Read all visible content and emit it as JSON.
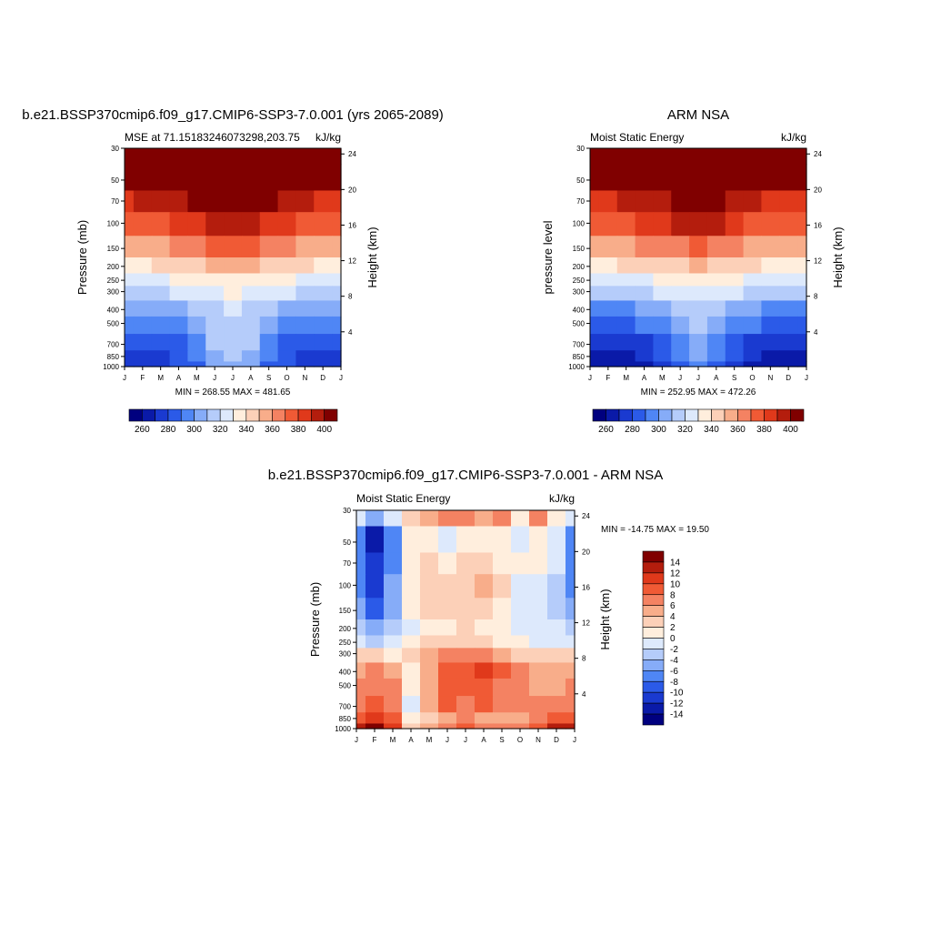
{
  "palette": {
    "model_obs": [
      "#00007f",
      "#0a1aa8",
      "#1a3ad0",
      "#2b5ae8",
      "#4f86f5",
      "#86acf8",
      "#b5ccfa",
      "#dde9fc",
      "#ffeedd",
      "#fcd0b8",
      "#f8ad8a",
      "#f48262",
      "#f05a35",
      "#e0391b",
      "#b41d0d",
      "#800000"
    ],
    "diff": [
      "#00007f",
      "#0a1aa8",
      "#1a3ad0",
      "#2b5ae8",
      "#4f86f5",
      "#86acf8",
      "#b5ccfa",
      "#dde9fc",
      "#ffeedd",
      "#fcd0b8",
      "#f8ad8a",
      "#f48262",
      "#f05a35",
      "#e0391b",
      "#b41d0d",
      "#800000"
    ]
  },
  "chart_data": [
    {
      "type": "heatmap",
      "title": "b.e21.BSSP370cmip6.f09_g17.CMIP6-SSP3-7.0.001 (yrs 2065-2089)",
      "subtitle_left": "MSE at 71.15183246073298,203.75",
      "subtitle_right": "kJ/kg",
      "ylabel": "Pressure (mb)",
      "ylabel_right": "Height (km)",
      "xticks": [
        "J",
        "F",
        "M",
        "A",
        "M",
        "J",
        "J",
        "A",
        "S",
        "O",
        "N",
        "D",
        "J"
      ],
      "yticks": [
        "30",
        "50",
        "70",
        "100",
        "150",
        "200",
        "250",
        "300",
        "400",
        "500",
        "700",
        "850",
        "1000"
      ],
      "height_ticks": [
        "24",
        "20",
        "16",
        "12",
        "8",
        "4"
      ],
      "stats": "MIN = 268.55 MAX = 481.65",
      "colorbar_labels": [
        "260",
        "280",
        "300",
        "320",
        "340",
        "360",
        "380",
        "400"
      ],
      "months": [
        "J",
        "F",
        "M",
        "A",
        "M",
        "J",
        "J",
        "A",
        "S",
        "O",
        "N",
        "D",
        "J"
      ],
      "levels_mb": [
        30,
        50,
        70,
        100,
        150,
        200,
        250,
        300,
        400,
        500,
        700,
        850,
        1000
      ],
      "values": [
        [
          450,
          455,
          458,
          462,
          466,
          470,
          472,
          470,
          466,
          461,
          456,
          452,
          450
        ],
        [
          405,
          408,
          411,
          415,
          420,
          425,
          428,
          425,
          420,
          414,
          409,
          406,
          405
        ],
        [
          388,
          390,
          392,
          396,
          401,
          406,
          409,
          406,
          401,
          395,
          391,
          389,
          388
        ],
        [
          373,
          375,
          377,
          381,
          386,
          391,
          394,
          391,
          386,
          380,
          376,
          374,
          373
        ],
        [
          355,
          356,
          358,
          362,
          366,
          371,
          374,
          371,
          366,
          361,
          357,
          355,
          355
        ],
        [
          338,
          339,
          341,
          343,
          347,
          351,
          354,
          351,
          347,
          343,
          340,
          338,
          338
        ],
        [
          326,
          327,
          328,
          330,
          333,
          337,
          339,
          337,
          333,
          330,
          327,
          326,
          326
        ],
        [
          316,
          317,
          318,
          320,
          323,
          327,
          330,
          327,
          323,
          320,
          317,
          316,
          316
        ],
        [
          301,
          302,
          303,
          306,
          311,
          318,
          322,
          318,
          311,
          306,
          303,
          301,
          301
        ],
        [
          292,
          293,
          294,
          297,
          303,
          313,
          318,
          313,
          303,
          297,
          294,
          292,
          292
        ],
        [
          281,
          282,
          284,
          288,
          296,
          310,
          316,
          310,
          296,
          288,
          284,
          282,
          281
        ],
        [
          276,
          277,
          279,
          284,
          292,
          305,
          312,
          305,
          292,
          284,
          279,
          277,
          276
        ],
        [
          272,
          273,
          275,
          280,
          288,
          300,
          307,
          300,
          288,
          280,
          275,
          273,
          272
        ]
      ],
      "levels": [
        250,
        260,
        270,
        280,
        290,
        300,
        310,
        320,
        330,
        340,
        350,
        360,
        370,
        380,
        390,
        400
      ]
    },
    {
      "type": "heatmap",
      "title": "ARM NSA",
      "subtitle_left": "Moist Static Energy",
      "subtitle_right": "kJ/kg",
      "ylabel": "pressure level",
      "ylabel_right": "Height (km)",
      "xticks": [
        "J",
        "F",
        "M",
        "A",
        "M",
        "J",
        "J",
        "A",
        "S",
        "O",
        "N",
        "D",
        "J"
      ],
      "yticks": [
        "30",
        "50",
        "70",
        "100",
        "150",
        "200",
        "250",
        "300",
        "400",
        "500",
        "700",
        "850",
        "1000"
      ],
      "height_ticks": [
        "24",
        "20",
        "16",
        "12",
        "8",
        "4"
      ],
      "stats": "MIN = 252.95 MAX = 472.26",
      "colorbar_labels": [
        "260",
        "280",
        "300",
        "320",
        "340",
        "360",
        "380",
        "400"
      ],
      "months": [
        "J",
        "F",
        "M",
        "A",
        "M",
        "J",
        "J",
        "A",
        "S",
        "O",
        "N",
        "D",
        "J"
      ],
      "levels_mb": [
        30,
        50,
        70,
        100,
        150,
        200,
        250,
        300,
        400,
        500,
        700,
        850,
        1000
      ],
      "values": [
        [
          445,
          449,
          452,
          456,
          460,
          464,
          466,
          464,
          460,
          455,
          450,
          447,
          445
        ],
        [
          402,
          404,
          407,
          411,
          416,
          421,
          424,
          421,
          416,
          410,
          405,
          403,
          402
        ],
        [
          386,
          388,
          390,
          394,
          399,
          404,
          407,
          404,
          399,
          393,
          389,
          387,
          386
        ],
        [
          372,
          374,
          376,
          380,
          385,
          390,
          393,
          390,
          385,
          379,
          375,
          373,
          372
        ],
        [
          354,
          355,
          357,
          360,
          364,
          369,
          372,
          369,
          364,
          359,
          356,
          354,
          354
        ],
        [
          337,
          338,
          340,
          342,
          345,
          349,
          352,
          349,
          345,
          342,
          339,
          337,
          337
        ],
        [
          325,
          326,
          327,
          329,
          332,
          335,
          337,
          335,
          332,
          329,
          326,
          325,
          325
        ],
        [
          313,
          314,
          315,
          318,
          321,
          325,
          328,
          325,
          321,
          318,
          315,
          314,
          313
        ],
        [
          296,
          297,
          298,
          302,
          307,
          314,
          318,
          314,
          307,
          302,
          298,
          297,
          296
        ],
        [
          286,
          286,
          287,
          291,
          298,
          307,
          312,
          307,
          298,
          291,
          287,
          286,
          286
        ],
        [
          272,
          272,
          274,
          279,
          287,
          299,
          305,
          299,
          287,
          279,
          274,
          272,
          272
        ],
        [
          266,
          266,
          268,
          273,
          282,
          294,
          300,
          294,
          282,
          273,
          268,
          266,
          266
        ],
        [
          260,
          260,
          262,
          267,
          276,
          288,
          295,
          288,
          276,
          267,
          262,
          260,
          260
        ]
      ],
      "levels": [
        250,
        260,
        270,
        280,
        290,
        300,
        310,
        320,
        330,
        340,
        350,
        360,
        370,
        380,
        390,
        400
      ]
    },
    {
      "type": "heatmap",
      "title": "b.e21.BSSP370cmip6.f09_g17.CMIP6-SSP3-7.0.001 - ARM NSA",
      "subtitle_left": "Moist Static Energy",
      "subtitle_right": "kJ/kg",
      "ylabel": "Pressure (mb)",
      "ylabel_right": "Height (km)",
      "xticks": [
        "J",
        "F",
        "M",
        "A",
        "M",
        "J",
        "J",
        "A",
        "S",
        "O",
        "N",
        "D",
        "J"
      ],
      "yticks": [
        "30",
        "50",
        "70",
        "100",
        "150",
        "200",
        "250",
        "300",
        "400",
        "500",
        "700",
        "850",
        "1000"
      ],
      "height_ticks": [
        "24",
        "20",
        "16",
        "12",
        "8",
        "4"
      ],
      "stats": "MIN = -14.75 MAX =  19.50",
      "colorbar_labels": [
        "14",
        "12",
        "10",
        "8",
        "6",
        "4",
        "2",
        "0",
        "-2",
        "-4",
        "-6",
        "-8",
        "-10",
        "-12",
        "-14"
      ],
      "months": [
        "J",
        "F",
        "M",
        "A",
        "M",
        "J",
        "J",
        "A",
        "S",
        "O",
        "N",
        "D",
        "J"
      ],
      "levels_mb": [
        30,
        50,
        70,
        100,
        150,
        200,
        250,
        300,
        400,
        500,
        700,
        850,
        1000
      ],
      "values": [
        [
          -1,
          -6,
          -2,
          3,
          5,
          6,
          7,
          5,
          6,
          1,
          7,
          1,
          -1
        ],
        [
          -8,
          -14,
          -8,
          0,
          1,
          -1,
          1,
          1,
          1,
          -2,
          1,
          -1,
          -8
        ],
        [
          -7,
          -12,
          -7,
          1,
          2,
          1,
          2,
          2,
          1,
          0,
          0,
          -2,
          -7
        ],
        [
          -7,
          -11,
          -6,
          0,
          2,
          3,
          3,
          5,
          2,
          -1,
          -1,
          -3,
          -7
        ],
        [
          -5,
          -9,
          -5,
          0,
          2,
          3,
          2,
          3,
          1,
          -1,
          -2,
          -3,
          -5
        ],
        [
          -4,
          -6,
          -3,
          -1,
          0,
          1,
          2,
          1,
          0,
          -1,
          -2,
          -2,
          -4
        ],
        [
          -2,
          -3,
          -2,
          1,
          2,
          3,
          3,
          3,
          1,
          0,
          -1,
          -1,
          -2
        ],
        [
          3,
          2,
          1,
          2,
          5,
          6,
          7,
          6,
          4,
          3,
          2,
          3,
          3
        ],
        [
          5,
          6,
          5,
          1,
          5,
          8,
          9,
          10,
          8,
          7,
          5,
          4,
          5
        ],
        [
          6,
          7,
          6,
          0,
          4,
          9,
          8,
          9,
          7,
          6,
          5,
          5,
          6
        ],
        [
          7,
          9,
          7,
          -1,
          5,
          8,
          7,
          8,
          6,
          7,
          6,
          6,
          7
        ],
        [
          9,
          11,
          8,
          0,
          3,
          5,
          6,
          4,
          5,
          5,
          6,
          8,
          9
        ],
        [
          13,
          16,
          10,
          2,
          5,
          6,
          8,
          7,
          6,
          6,
          9,
          12,
          13
        ]
      ],
      "levels": [
        -16,
        -14,
        -12,
        -10,
        -8,
        -6,
        -4,
        -2,
        0,
        2,
        4,
        6,
        8,
        10,
        12,
        14
      ]
    }
  ]
}
